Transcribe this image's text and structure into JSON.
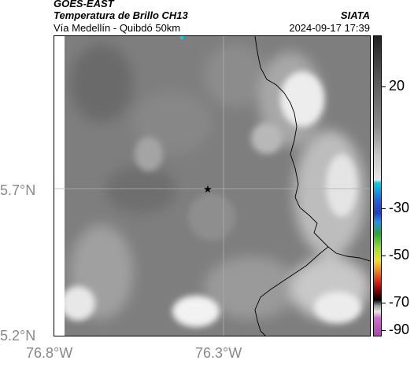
{
  "header": {
    "satellite": "GOES-EAST",
    "product": "Temperatura de Brillo CH13",
    "region": "Vía Medellín - Quibdó 50km",
    "agency": "SIATA",
    "timestamp": "2024-09-17 17:39"
  },
  "axes": {
    "lat_labels": [
      "5.7°N",
      "5.2°N"
    ],
    "lon_labels": [
      "76.8°W",
      "76.3°W"
    ]
  },
  "colorbar": {
    "labels": [
      "20",
      "-30",
      "-50",
      "-70",
      "-90"
    ],
    "colors": {
      "black": "#222222",
      "gray": "#8a8a8a",
      "light": "#e6e6e6",
      "cyan": "#00d2e6",
      "blue": "#1f3fbf",
      "green": "#22aa33",
      "yellow": "#f0e020",
      "red": "#e02010",
      "magenta": "#b040b0"
    }
  },
  "map": {
    "marker_icon": "star-icon",
    "base_color": "#808080",
    "border_color": "#000000"
  }
}
